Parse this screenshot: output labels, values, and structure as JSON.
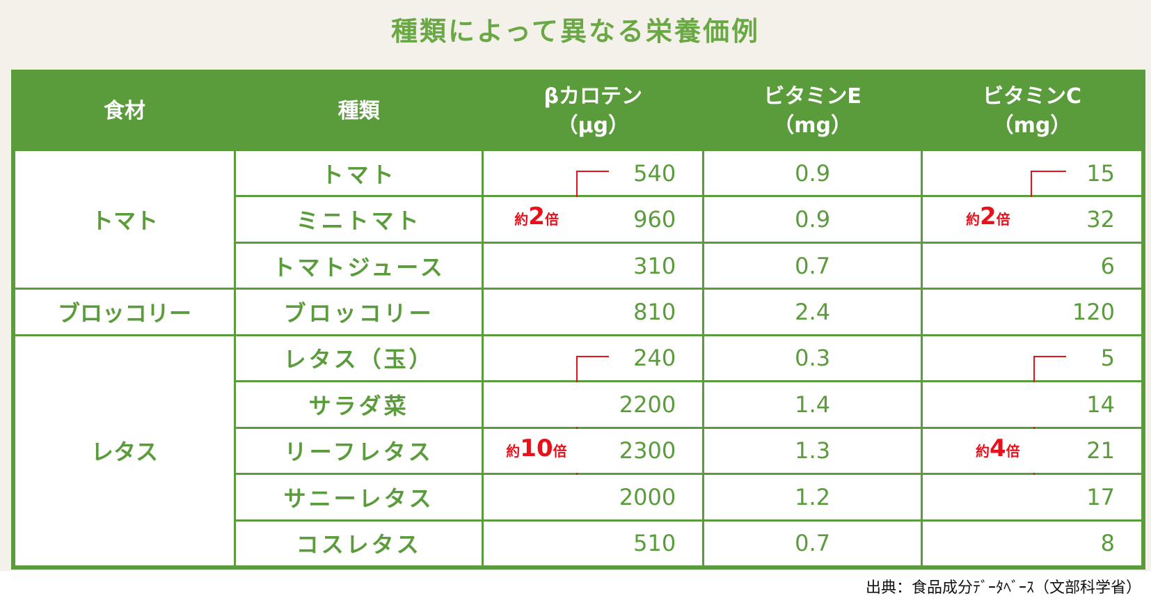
{
  "title": "種類によって異なる栄養価例",
  "headers": {
    "food": "食材",
    "kind": "種類",
    "carotene": "βカロテン",
    "carotene_unit": "（μg）",
    "vitE": "ビタミンE",
    "vitE_unit": "（mg）",
    "vitC": "ビタミンC",
    "vitC_unit": "（mg）"
  },
  "groups": [
    "トマト",
    "ブロッコリー",
    "レタス"
  ],
  "rows": [
    {
      "kind": "トマト",
      "carotene": "540",
      "vitE": "0.9",
      "vitC": "15"
    },
    {
      "kind": "ミニトマト",
      "carotene": "960",
      "vitE": "0.9",
      "vitC": "32"
    },
    {
      "kind": "トマトジュース",
      "carotene": "310",
      "vitE": "0.7",
      "vitC": "6"
    },
    {
      "kind": "ブロッコリー",
      "carotene": "810",
      "vitE": "2.4",
      "vitC": "120"
    },
    {
      "kind": "レタス（玉）",
      "carotene": "240",
      "vitE": "0.3",
      "vitC": "5"
    },
    {
      "kind": "サラダ菜",
      "carotene": "2200",
      "vitE": "1.4",
      "vitC": "14"
    },
    {
      "kind": "リーフレタス",
      "carotene": "2300",
      "vitE": "1.3",
      "vitC": "21"
    },
    {
      "kind": "サニーレタス",
      "carotene": "2000",
      "vitE": "1.2",
      "vitC": "17"
    },
    {
      "kind": "コスレタス",
      "carotene": "510",
      "vitE": "0.7",
      "vitC": "8"
    }
  ],
  "annotations": {
    "tomato_carotene": {
      "prefix": "約",
      "num": "2",
      "suffix": "倍"
    },
    "tomato_vitc": {
      "prefix": "約",
      "num": "2",
      "suffix": "倍"
    },
    "lettuce_carotene": {
      "prefix": "約",
      "num": "10",
      "suffix": "倍"
    },
    "lettuce_vitc": {
      "prefix": "約",
      "num": "4",
      "suffix": "倍"
    }
  },
  "source": "出典：食品成分ﾃﾞｰﾀﾍﾞｰｽ（文部科学省）",
  "colors": {
    "green": "#5a9c3b",
    "title_green": "#6aa846",
    "red": "#e8111b",
    "bg": "#f4f1ea"
  }
}
